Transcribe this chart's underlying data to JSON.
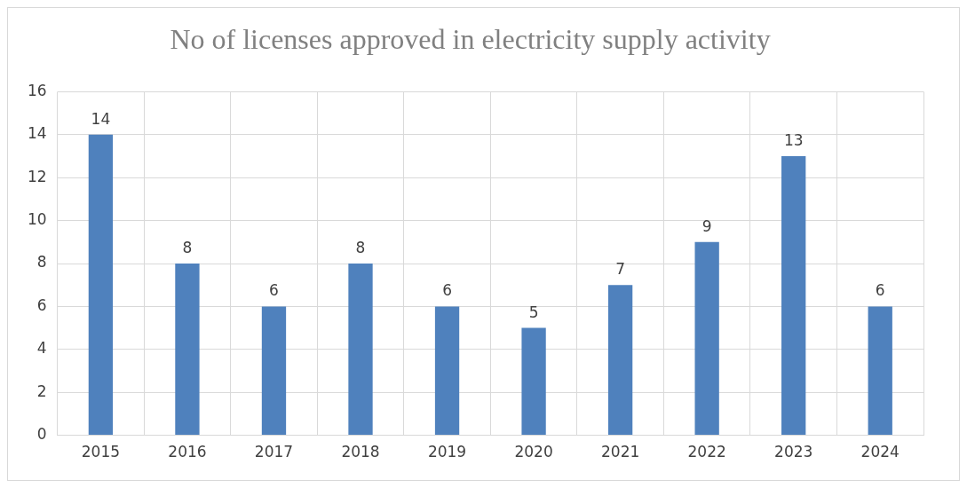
{
  "chart_data": {
    "type": "bar",
    "title": "No of licenses approved in electricity supply activity",
    "categories": [
      "2015",
      "2016",
      "2017",
      "2018",
      "2019",
      "2020",
      "2021",
      "2022",
      "2023",
      "2024"
    ],
    "values": [
      14,
      8,
      6,
      8,
      6,
      5,
      7,
      9,
      13,
      6
    ],
    "color": "#4f81bd",
    "ylim": [
      0,
      16
    ],
    "yticks": [
      0,
      2,
      4,
      6,
      8,
      10,
      12,
      14,
      16
    ],
    "grid": true,
    "data_labels": true,
    "legend": false
  }
}
